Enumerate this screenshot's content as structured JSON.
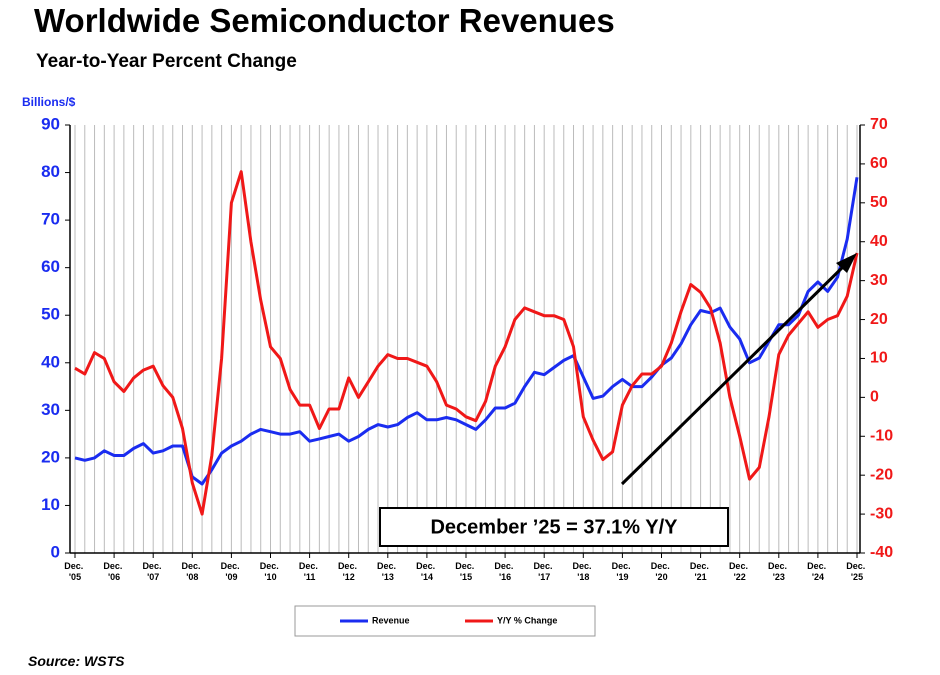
{
  "chart_data": {
    "type": "line",
    "title": "Worldwide Semiconductor Revenues",
    "subtitle": "Year-to-Year Percent Change",
    "y_label": "Billions/$",
    "annotation": "December ’25 = 37.1% Y/Y",
    "source": "Source: WSTS",
    "categories": [
      "Dec. '05",
      null,
      null,
      null,
      "Dec. '06",
      null,
      null,
      null,
      "Dec. '07",
      null,
      null,
      null,
      "Dec. '08",
      null,
      null,
      null,
      "Dec. '09",
      null,
      null,
      null,
      "Dec. '10",
      null,
      null,
      null,
      "Dec. '11",
      null,
      null,
      null,
      "Dec. '12",
      null,
      null,
      null,
      "Dec. '13",
      null,
      null,
      null,
      "Dec. '14",
      null,
      null,
      null,
      "Dec. '15",
      null,
      null,
      null,
      "Dec. '16",
      null,
      null,
      null,
      "Dec. '17",
      null,
      null,
      null,
      "Dec. '18",
      null,
      null,
      null,
      "Dec. '19",
      null,
      null,
      null,
      "Dec. '20",
      null,
      null,
      null,
      "Dec. '21",
      null,
      null,
      null,
      "Dec. '22",
      null,
      null,
      null,
      "Dec. '23",
      null,
      null,
      null,
      "Dec. '24",
      null,
      null,
      null,
      "Dec. '25"
    ],
    "series": [
      {
        "name": "Revenue",
        "color": "#1a2cf0",
        "values": [
          20,
          19.5,
          20,
          21.5,
          20.5,
          20.5,
          22,
          23,
          21,
          21.5,
          22.5,
          22.5,
          16,
          14.5,
          17.5,
          21,
          22.5,
          23.5,
          25,
          26,
          25.5,
          25,
          25,
          25.5,
          23.5,
          24,
          24.5,
          25,
          23.5,
          24.5,
          26,
          27,
          26.5,
          27,
          28.5,
          29.5,
          28,
          28,
          28.5,
          28,
          27,
          26,
          28,
          30.5,
          30.5,
          31.5,
          35,
          38,
          37.5,
          39,
          40.5,
          41.5,
          37,
          32.5,
          33,
          35,
          36.5,
          35,
          35,
          37,
          39.5,
          41,
          44,
          48,
          51,
          50.5,
          51.5,
          47.5,
          45,
          40,
          41,
          44.5,
          48,
          48,
          50,
          55,
          57,
          55,
          58,
          66,
          79
        ]
      },
      {
        "name": "Y/Y % Change",
        "color": "#f01818",
        "axis": "y2",
        "values": [
          7.5,
          6,
          11.5,
          10,
          4,
          1.5,
          5,
          7,
          8,
          3,
          0,
          -8,
          -22,
          -30,
          -15,
          10,
          50,
          58,
          40,
          25,
          13,
          10,
          2,
          -2,
          -2,
          -8,
          -3,
          -3,
          5,
          0,
          4,
          8,
          11,
          10,
          10,
          9,
          8,
          4,
          -2,
          -3,
          -5,
          -6,
          -1,
          8,
          13,
          20,
          23,
          22,
          21,
          21,
          20,
          13,
          -5,
          -11,
          -16,
          -14,
          -2,
          3,
          6,
          6,
          8,
          14,
          22,
          29,
          27,
          23,
          14,
          0,
          -10,
          -21,
          -18,
          -5,
          11,
          16,
          19,
          22,
          18,
          20,
          21,
          26,
          37.1
        ]
      }
    ],
    "ylim": [
      0,
      90
    ],
    "yticks": [
      0,
      10,
      20,
      30,
      40,
      50,
      60,
      70,
      80,
      90
    ],
    "y2lim": [
      -40,
      70
    ],
    "y2ticks": [
      -40,
      -30,
      -20,
      -10,
      0,
      10,
      20,
      30,
      40,
      50,
      60,
      70
    ],
    "grid": true
  }
}
